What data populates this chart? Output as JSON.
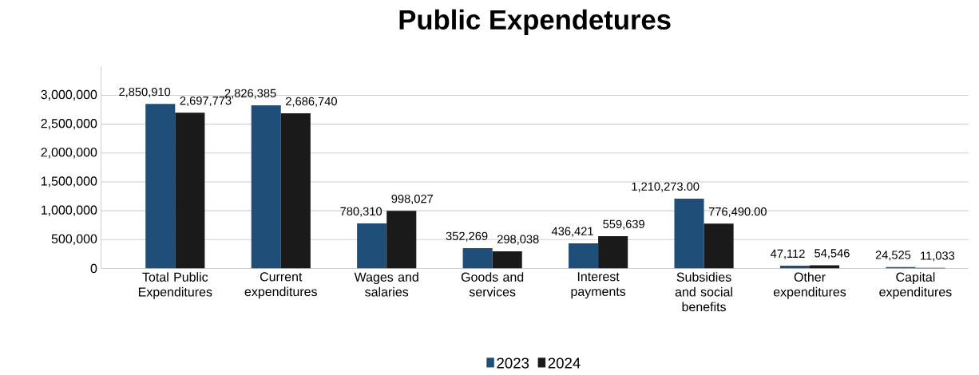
{
  "chart_data": {
    "type": "bar",
    "title": "Public Expendetures",
    "categories": [
      "Total Public Expenditures",
      "Current expenditures",
      "Wages and salaries",
      "Goods and services",
      "Interest payments",
      "Subsidies and social benefits",
      "Other expenditures",
      "Capital expenditures"
    ],
    "series": [
      {
        "name": "2023",
        "color": "#1f4e79",
        "values": [
          2850910,
          2826385,
          780310,
          352269,
          436421,
          1210273.0,
          47112,
          24525
        ],
        "value_labels": [
          "2,850,910",
          "2,826,385",
          "780,310",
          "352,269",
          "436,421",
          "1,210,273.00",
          "47,112",
          "24,525"
        ]
      },
      {
        "name": "2024",
        "color": "#1a1a1a",
        "values": [
          2697773,
          2686740,
          998027,
          298038,
          559639,
          776490.0,
          54546,
          11033
        ],
        "value_labels": [
          "2,697,773",
          "2,686,740",
          "998,027",
          "298,038",
          "559,639",
          "776,490.00",
          "54,546",
          "11,033"
        ]
      }
    ],
    "ylim": [
      0,
      3500000
    ],
    "yticks": [
      {
        "value": 0,
        "label": "0"
      },
      {
        "value": 500000,
        "label": "500,000"
      },
      {
        "value": 1000000,
        "label": "1,000,000"
      },
      {
        "value": 1500000,
        "label": "1,500,000"
      },
      {
        "value": 2000000,
        "label": "2,000,000"
      },
      {
        "value": 2500000,
        "label": "2,500,000"
      },
      {
        "value": 3000000,
        "label": "3,000,000"
      }
    ],
    "grid": "y",
    "legend": "bottom"
  }
}
